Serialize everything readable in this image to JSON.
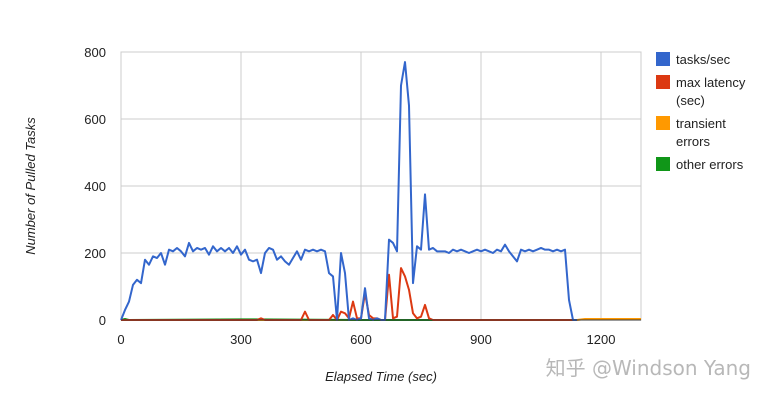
{
  "chart_data": {
    "type": "line",
    "title": "",
    "xlabel": "Elapsed Time (sec)",
    "ylabel": "Number of Pulled Tasks",
    "xlim": [
      0,
      1300
    ],
    "ylim": [
      0,
      800
    ],
    "x_ticks": [
      0,
      300,
      600,
      900,
      1200
    ],
    "y_ticks": [
      0,
      200,
      400,
      600,
      800
    ],
    "grid": true,
    "legend_position": "right",
    "series": [
      {
        "name": "tasks/sec",
        "color": "#3366cc",
        "points": [
          [
            0,
            0
          ],
          [
            10,
            30
          ],
          [
            20,
            55
          ],
          [
            30,
            105
          ],
          [
            40,
            120
          ],
          [
            50,
            110
          ],
          [
            60,
            180
          ],
          [
            70,
            165
          ],
          [
            80,
            190
          ],
          [
            90,
            185
          ],
          [
            100,
            200
          ],
          [
            110,
            165
          ],
          [
            120,
            210
          ],
          [
            130,
            205
          ],
          [
            140,
            215
          ],
          [
            150,
            205
          ],
          [
            160,
            190
          ],
          [
            170,
            230
          ],
          [
            180,
            205
          ],
          [
            190,
            215
          ],
          [
            200,
            210
          ],
          [
            210,
            215
          ],
          [
            220,
            195
          ],
          [
            230,
            220
          ],
          [
            240,
            205
          ],
          [
            250,
            215
          ],
          [
            260,
            205
          ],
          [
            270,
            215
          ],
          [
            280,
            200
          ],
          [
            290,
            220
          ],
          [
            300,
            195
          ],
          [
            310,
            210
          ],
          [
            320,
            180
          ],
          [
            330,
            175
          ],
          [
            340,
            180
          ],
          [
            350,
            140
          ],
          [
            360,
            200
          ],
          [
            370,
            215
          ],
          [
            380,
            210
          ],
          [
            390,
            180
          ],
          [
            400,
            190
          ],
          [
            410,
            175
          ],
          [
            420,
            165
          ],
          [
            430,
            185
          ],
          [
            440,
            205
          ],
          [
            450,
            180
          ],
          [
            460,
            210
          ],
          [
            470,
            205
          ],
          [
            480,
            210
          ],
          [
            490,
            205
          ],
          [
            500,
            210
          ],
          [
            510,
            205
          ],
          [
            520,
            140
          ],
          [
            530,
            130
          ],
          [
            540,
            0
          ],
          [
            550,
            200
          ],
          [
            560,
            140
          ],
          [
            570,
            0
          ],
          [
            580,
            5
          ],
          [
            590,
            0
          ],
          [
            600,
            5
          ],
          [
            610,
            95
          ],
          [
            620,
            5
          ],
          [
            630,
            0
          ],
          [
            640,
            5
          ],
          [
            650,
            0
          ],
          [
            660,
            0
          ],
          [
            670,
            240
          ],
          [
            680,
            230
          ],
          [
            690,
            205
          ],
          [
            700,
            700
          ],
          [
            710,
            770
          ],
          [
            720,
            640
          ],
          [
            730,
            110
          ],
          [
            740,
            220
          ],
          [
            750,
            210
          ],
          [
            760,
            375
          ],
          [
            770,
            210
          ],
          [
            780,
            215
          ],
          [
            790,
            205
          ],
          [
            800,
            205
          ],
          [
            810,
            205
          ],
          [
            820,
            200
          ],
          [
            830,
            210
          ],
          [
            840,
            205
          ],
          [
            850,
            210
          ],
          [
            860,
            205
          ],
          [
            870,
            200
          ],
          [
            880,
            205
          ],
          [
            890,
            210
          ],
          [
            900,
            205
          ],
          [
            910,
            210
          ],
          [
            920,
            205
          ],
          [
            930,
            200
          ],
          [
            940,
            210
          ],
          [
            950,
            205
          ],
          [
            960,
            225
          ],
          [
            970,
            205
          ],
          [
            980,
            190
          ],
          [
            990,
            175
          ],
          [
            1000,
            210
          ],
          [
            1010,
            205
          ],
          [
            1020,
            210
          ],
          [
            1030,
            205
          ],
          [
            1040,
            210
          ],
          [
            1050,
            215
          ],
          [
            1060,
            210
          ],
          [
            1070,
            210
          ],
          [
            1080,
            205
          ],
          [
            1090,
            210
          ],
          [
            1100,
            205
          ],
          [
            1110,
            210
          ],
          [
            1120,
            60
          ],
          [
            1130,
            0
          ],
          [
            1140,
            0
          ]
        ]
      },
      {
        "name": "max latency (sec)",
        "color": "#dc3912",
        "points": [
          [
            0,
            0
          ],
          [
            100,
            0
          ],
          [
            200,
            0
          ],
          [
            300,
            0
          ],
          [
            340,
            0
          ],
          [
            350,
            5
          ],
          [
            360,
            0
          ],
          [
            450,
            0
          ],
          [
            460,
            25
          ],
          [
            470,
            0
          ],
          [
            520,
            0
          ],
          [
            530,
            15
          ],
          [
            540,
            0
          ],
          [
            550,
            25
          ],
          [
            560,
            20
          ],
          [
            570,
            5
          ],
          [
            580,
            55
          ],
          [
            590,
            5
          ],
          [
            600,
            5
          ],
          [
            610,
            80
          ],
          [
            620,
            15
          ],
          [
            630,
            5
          ],
          [
            640,
            5
          ],
          [
            650,
            0
          ],
          [
            660,
            0
          ],
          [
            670,
            135
          ],
          [
            680,
            5
          ],
          [
            690,
            10
          ],
          [
            700,
            155
          ],
          [
            710,
            130
          ],
          [
            720,
            90
          ],
          [
            730,
            20
          ],
          [
            740,
            5
          ],
          [
            750,
            10
          ],
          [
            760,
            45
          ],
          [
            770,
            5
          ],
          [
            780,
            0
          ],
          [
            900,
            0
          ],
          [
            1000,
            0
          ],
          [
            1100,
            0
          ],
          [
            1140,
            0
          ]
        ]
      },
      {
        "name": "transient errors",
        "color": "#ff9900",
        "points": [
          [
            0,
            0
          ],
          [
            200,
            0
          ],
          [
            400,
            0
          ],
          [
            600,
            0
          ],
          [
            800,
            0
          ],
          [
            1000,
            0
          ],
          [
            1140,
            0
          ],
          [
            1160,
            3
          ],
          [
            1300,
            3
          ]
        ]
      },
      {
        "name": "other errors",
        "color": "#109618",
        "points": [
          [
            0,
            0
          ],
          [
            10,
            3
          ],
          [
            20,
            0
          ],
          [
            300,
            2
          ],
          [
            600,
            0
          ],
          [
            900,
            0
          ],
          [
            1140,
            0
          ]
        ]
      }
    ]
  },
  "watermark": "知乎 @Windson Yang"
}
